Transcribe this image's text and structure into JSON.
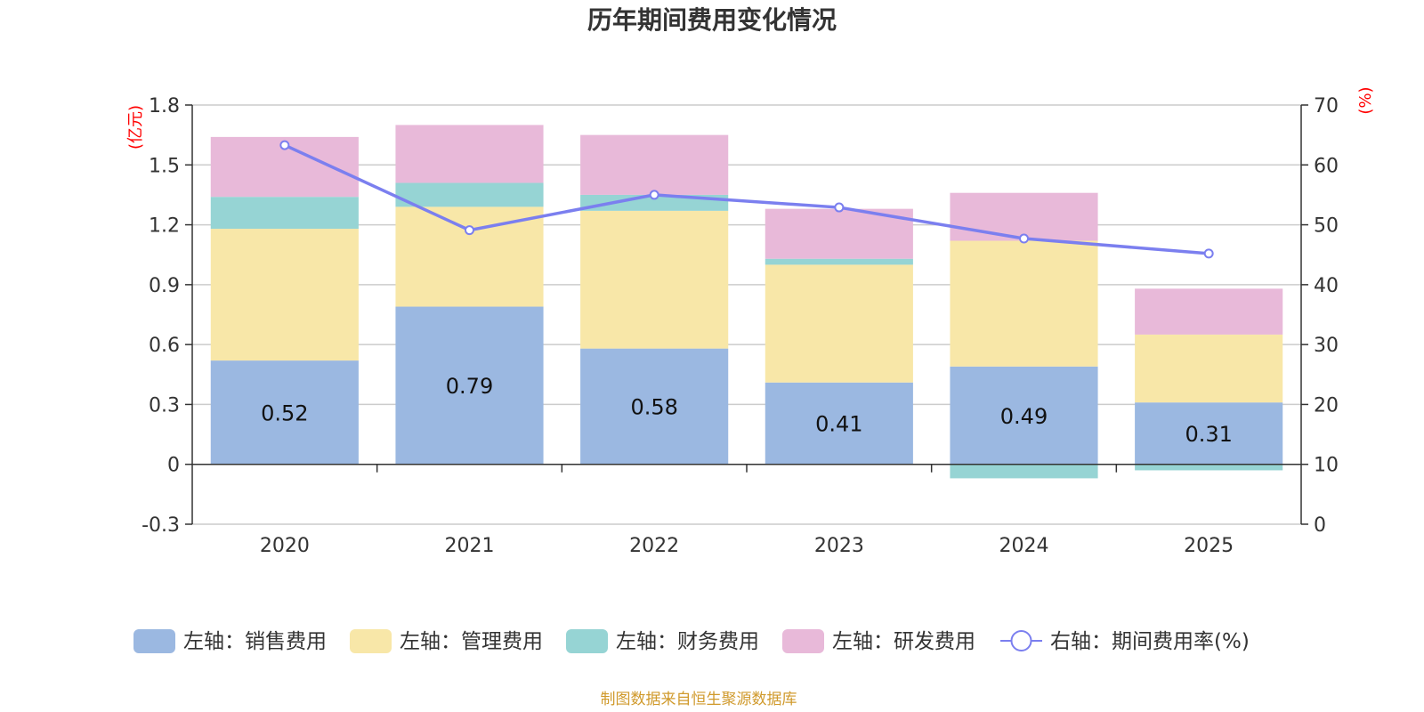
{
  "chart_data": {
    "type": "bar",
    "title": "历年期间费用变化情况",
    "categories": [
      "2020",
      "2021",
      "2022",
      "2023",
      "2024",
      "2025"
    ],
    "left_axis": {
      "unit": "(亿元)",
      "ylim": [
        -0.3,
        1.8
      ],
      "ticks": [
        -0.3,
        0,
        0.3,
        0.6,
        0.9,
        1.2,
        1.5,
        1.8
      ],
      "tick_labels": [
        "-0.3",
        "0",
        "0.3",
        "0.6",
        "0.9",
        "1.2",
        "1.5",
        "1.8"
      ]
    },
    "right_axis": {
      "unit": "(%)",
      "ylim": [
        0,
        70
      ],
      "ticks": [
        0,
        10,
        20,
        30,
        40,
        50,
        60,
        70
      ],
      "tick_labels": [
        "0",
        "10",
        "20",
        "30",
        "40",
        "50",
        "60",
        "70"
      ]
    },
    "series": [
      {
        "name": "左轴：销售费用",
        "type": "bar",
        "color": "#9bb8e1",
        "values": [
          0.52,
          0.79,
          0.58,
          0.41,
          0.49,
          0.31
        ],
        "labels": [
          "0.52",
          "0.79",
          "0.58",
          "0.41",
          "0.49",
          "0.31"
        ]
      },
      {
        "name": "左轴：管理费用",
        "type": "bar",
        "color": "#f8e7a8",
        "values": [
          0.66,
          0.5,
          0.69,
          0.59,
          0.63,
          0.34
        ]
      },
      {
        "name": "左轴：财务费用",
        "type": "bar",
        "color": "#96d4d4",
        "values": [
          0.16,
          0.12,
          0.08,
          0.03,
          -0.07,
          -0.03
        ]
      },
      {
        "name": "左轴：研发费用",
        "type": "bar",
        "color": "#e8b9d9",
        "values": [
          0.3,
          0.29,
          0.3,
          0.25,
          0.24,
          0.23
        ]
      },
      {
        "name": "右轴：期间费用率(%)",
        "type": "line",
        "color": "#7b7fef",
        "values": [
          63.3,
          49.1,
          55.0,
          52.9,
          47.7,
          45.2
        ]
      }
    ],
    "source": "制图数据来自恒生聚源数据库"
  }
}
